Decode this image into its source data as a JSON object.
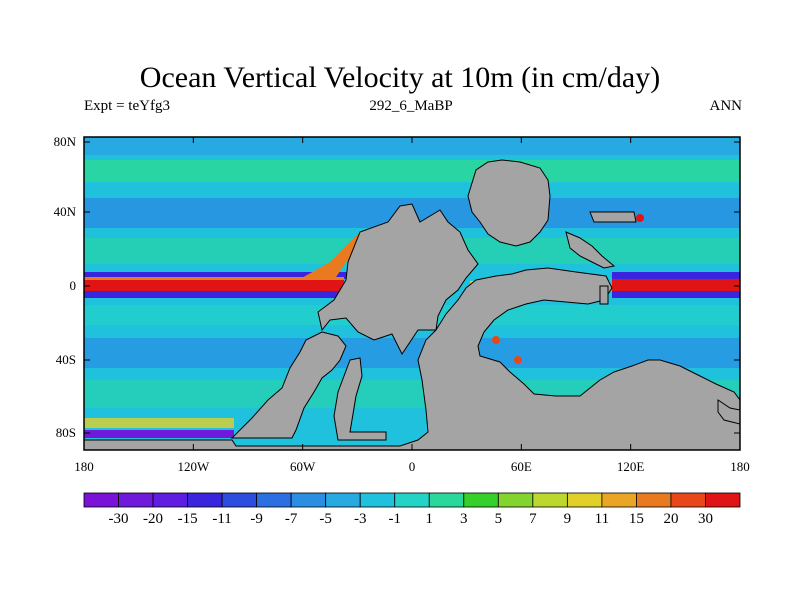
{
  "title": "Ocean Vertical Velocity at 10m (in cm/day)",
  "subtitle_left": "Expt = teYfg3",
  "subtitle_center": "292_6_MaBP",
  "subtitle_right": "ANN",
  "y_ticks": [
    "80N",
    "40N",
    "0",
    "40S",
    "80S"
  ],
  "x_ticks": [
    "180",
    "120W",
    "60W",
    "0",
    "60E",
    "120E",
    "180"
  ],
  "colorbar_labels": [
    "-30",
    "-20",
    "-15",
    "-11",
    "-9",
    "-7",
    "-5",
    "-3",
    "-1",
    "1",
    "3",
    "5",
    "7",
    "9",
    "11",
    "15",
    "20",
    "30"
  ],
  "colorbar_colors": [
    "#7b12d8",
    "#6f1adb",
    "#5e1de0",
    "#3b24dd",
    "#2d4de0",
    "#2c6fe3",
    "#2a8fe3",
    "#27a9e2",
    "#1fc1dd",
    "#23d3c6",
    "#2ad89c",
    "#35d12a",
    "#84d430",
    "#bcd82f",
    "#e2d02a",
    "#eaa524",
    "#ea7a20",
    "#e84819",
    "#e01414"
  ],
  "land_color": "#a4a4a4",
  "ocean_color": "#1fc1dd"
}
